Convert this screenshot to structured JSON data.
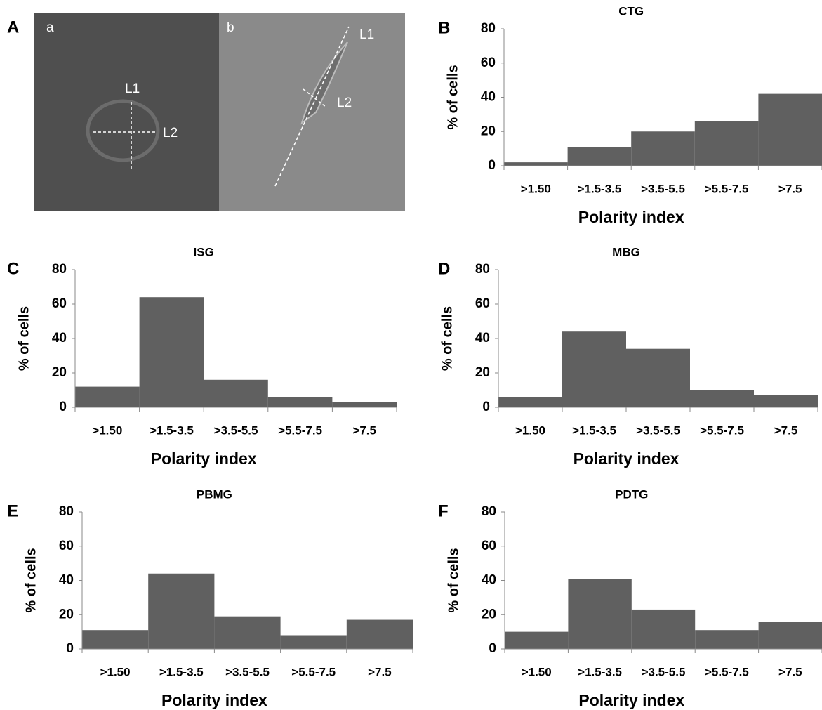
{
  "panel_a": {
    "label": "A",
    "images": [
      {
        "label": "a",
        "lines": [
          "L1",
          "L2"
        ]
      },
      {
        "label": "b",
        "lines": [
          "L1",
          "L2"
        ]
      }
    ]
  },
  "chart_data": [
    {
      "type": "bar",
      "panel_label": "B",
      "title": "CTG",
      "x_label": "Polarity index",
      "y_label": "% of cells",
      "categories": [
        ">1.50",
        ">1.5-3.5",
        ">3.5-5.5",
        ">5.5-7.5",
        ">7.5"
      ],
      "values": [
        2,
        11,
        20,
        26,
        42
      ],
      "color": "#606060",
      "ylim": [
        0,
        80
      ],
      "yticks": [
        0,
        20,
        40,
        60,
        80
      ]
    },
    {
      "type": "bar",
      "panel_label": "C",
      "title": "ISG",
      "x_label": "Polarity index",
      "y_label": "% of cells",
      "categories": [
        ">1.50",
        ">1.5-3.5",
        ">3.5-5.5",
        ">5.5-7.5",
        ">7.5"
      ],
      "values": [
        12,
        64,
        16,
        6,
        3
      ],
      "color": "#606060",
      "ylim": [
        0,
        80
      ],
      "yticks": [
        0,
        20,
        40,
        60,
        80
      ]
    },
    {
      "type": "bar",
      "panel_label": "D",
      "title": "MBG",
      "x_label": "Polarity index",
      "y_label": "% of cells",
      "categories": [
        ">1.50",
        ">1.5-3.5",
        ">3.5-5.5",
        ">5.5-7.5",
        ">7.5"
      ],
      "values": [
        6,
        44,
        34,
        10,
        7
      ],
      "color": "#606060",
      "ylim": [
        0,
        80
      ],
      "yticks": [
        0,
        20,
        40,
        60,
        80
      ]
    },
    {
      "type": "bar",
      "panel_label": "E",
      "title": "PBMG",
      "x_label": "Polarity index",
      "y_label": "% of cells",
      "categories": [
        ">1.50",
        ">1.5-3.5",
        ">3.5-5.5",
        ">5.5-7.5",
        ">7.5"
      ],
      "values": [
        11,
        44,
        19,
        8,
        17
      ],
      "color": "#606060",
      "ylim": [
        0,
        80
      ],
      "yticks": [
        0,
        20,
        40,
        60,
        80
      ]
    },
    {
      "type": "bar",
      "panel_label": "F",
      "title": "PDTG",
      "x_label": "Polarity index",
      "y_label": "% of cells",
      "categories": [
        ">1.50",
        ">1.5-3.5",
        ">3.5-5.5",
        ">5.5-7.5",
        ">7.5"
      ],
      "values": [
        10,
        41,
        23,
        11,
        16
      ],
      "color": "#606060",
      "ylim": [
        0,
        80
      ],
      "yticks": [
        0,
        20,
        40,
        60,
        80
      ]
    }
  ]
}
